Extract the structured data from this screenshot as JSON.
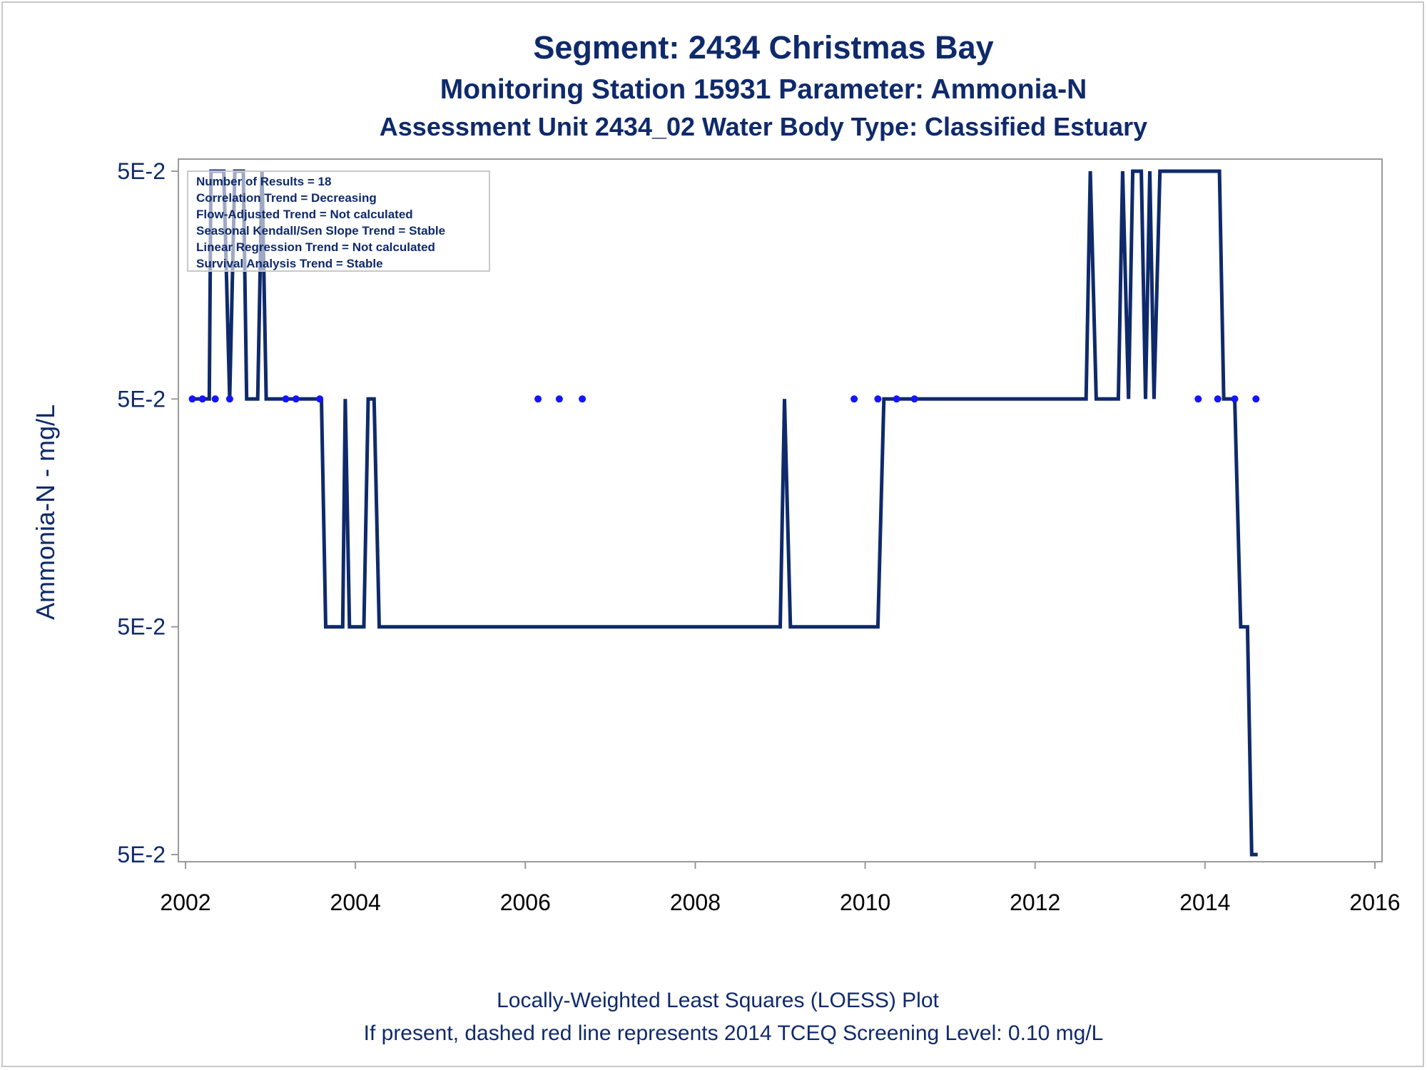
{
  "chart_data": {
    "type": "line",
    "title": "Segment: 2434  Christmas Bay",
    "subtitle": "Monitoring Station 15931 Parameter: Ammonia-N",
    "subtitle2": "Assessment Unit 2434_02   Water Body Type: Classified Estuary",
    "ylabel": "Ammonia-N - mg/L",
    "xlabel": "",
    "xlim": [
      2002,
      2016
    ],
    "x_ticks": [
      "2002",
      "2004",
      "2006",
      "2008",
      "2010",
      "2012",
      "2014",
      "2016"
    ],
    "y_ticks": [
      "5E-2",
      "5E-2",
      "5E-2",
      "5E-2"
    ],
    "ylim_levels": [
      0,
      3
    ],
    "stats_box": [
      "Number of Results = 18",
      "Correlation Trend = Decreasing",
      "Flow-Adjusted Trend = Not calculated",
      "Seasonal Kendall/Sen Slope Trend = Stable",
      "Linear Regression Trend = Not calculated",
      "Survival Analysis Trend = Stable"
    ],
    "footnotes": [
      "Locally-Weighted Least Squares (LOESS) Plot",
      "If present, dashed red line represents 2014 TCEQ Screening Level: 0.10 mg/L"
    ],
    "series": [
      {
        "kind": "loess_line",
        "color": "#0f2a6b",
        "points": [
          [
            2002.1,
            2
          ],
          [
            2002.28,
            2
          ],
          [
            2002.3,
            3
          ],
          [
            2002.45,
            3
          ],
          [
            2002.52,
            2
          ],
          [
            2002.58,
            3
          ],
          [
            2002.68,
            3
          ],
          [
            2002.72,
            2
          ],
          [
            2002.85,
            2
          ],
          [
            2002.9,
            3
          ],
          [
            2002.95,
            2
          ],
          [
            2003.6,
            2
          ],
          [
            2003.65,
            1
          ],
          [
            2003.85,
            1
          ],
          [
            2003.88,
            2
          ],
          [
            2003.93,
            1
          ],
          [
            2004.1,
            1
          ],
          [
            2004.15,
            2
          ],
          [
            2004.22,
            2
          ],
          [
            2004.28,
            1
          ],
          [
            2009.0,
            1
          ],
          [
            2009.05,
            2
          ],
          [
            2009.12,
            1
          ],
          [
            2010.15,
            1
          ],
          [
            2010.22,
            2
          ],
          [
            2012.6,
            2
          ],
          [
            2012.65,
            3
          ],
          [
            2012.72,
            2
          ],
          [
            2012.98,
            2
          ],
          [
            2013.03,
            3
          ],
          [
            2013.1,
            2
          ],
          [
            2013.15,
            3
          ],
          [
            2013.25,
            3
          ],
          [
            2013.3,
            2
          ],
          [
            2013.35,
            3
          ],
          [
            2013.4,
            2
          ],
          [
            2013.47,
            3
          ],
          [
            2014.17,
            3
          ],
          [
            2014.22,
            2
          ],
          [
            2014.35,
            2
          ],
          [
            2014.42,
            1
          ],
          [
            2014.5,
            1
          ],
          [
            2014.55,
            0
          ],
          [
            2014.62,
            0
          ]
        ]
      },
      {
        "kind": "observations",
        "color": "#1414ff",
        "x": [
          2002.08,
          2002.2,
          2002.35,
          2002.52,
          2003.18,
          2003.3,
          2003.58,
          2006.15,
          2006.4,
          2006.67,
          2009.87,
          2010.15,
          2010.37,
          2010.58,
          2013.92,
          2014.15,
          2014.35,
          2014.6
        ],
        "y": [
          2,
          2,
          2,
          2,
          2,
          2,
          2,
          2,
          2,
          2,
          2,
          2,
          2,
          2,
          2,
          2,
          2,
          2
        ]
      }
    ]
  }
}
